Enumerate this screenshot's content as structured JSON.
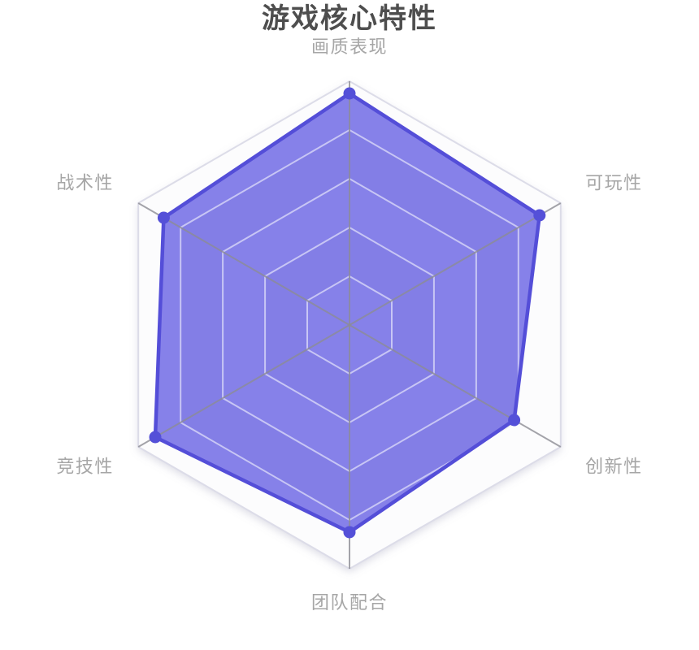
{
  "title": "游戏核心特性",
  "chart_data": {
    "type": "radar",
    "title": "游戏核心特性",
    "shape": "hexagon",
    "levels": 5,
    "max": 100,
    "min": 0,
    "grid": "on",
    "legend_position": "none",
    "indicators": [
      {
        "label": "画质表现",
        "max": 100
      },
      {
        "label": "可玩性",
        "max": 100
      },
      {
        "label": "创新性",
        "max": 100
      },
      {
        "label": "团队配合",
        "max": 100
      },
      {
        "label": "竞技性",
        "max": 100
      },
      {
        "label": "战术性",
        "max": 100
      }
    ],
    "series": [
      {
        "name": "游戏核心特性",
        "values": [
          95,
          90,
          78,
          85,
          92,
          88
        ]
      }
    ],
    "center": [
      430,
      400
    ],
    "radius": 300,
    "label_distance": 35,
    "colors": {
      "title": "#4e4e4e",
      "axis_label": "#a6a6a6",
      "series_line": "#544ed8",
      "series_dot": "#5450d8",
      "series_area": "rgba(95,88,226,0.75)",
      "grid_ring": "rgba(255,255,255,0.55)",
      "grid_outer": "#dcdce8",
      "axis_spoke": "rgba(140,140,147,0.8)",
      "band_light": "#fcfcfd",
      "band_dark": "#ededf1"
    }
  }
}
